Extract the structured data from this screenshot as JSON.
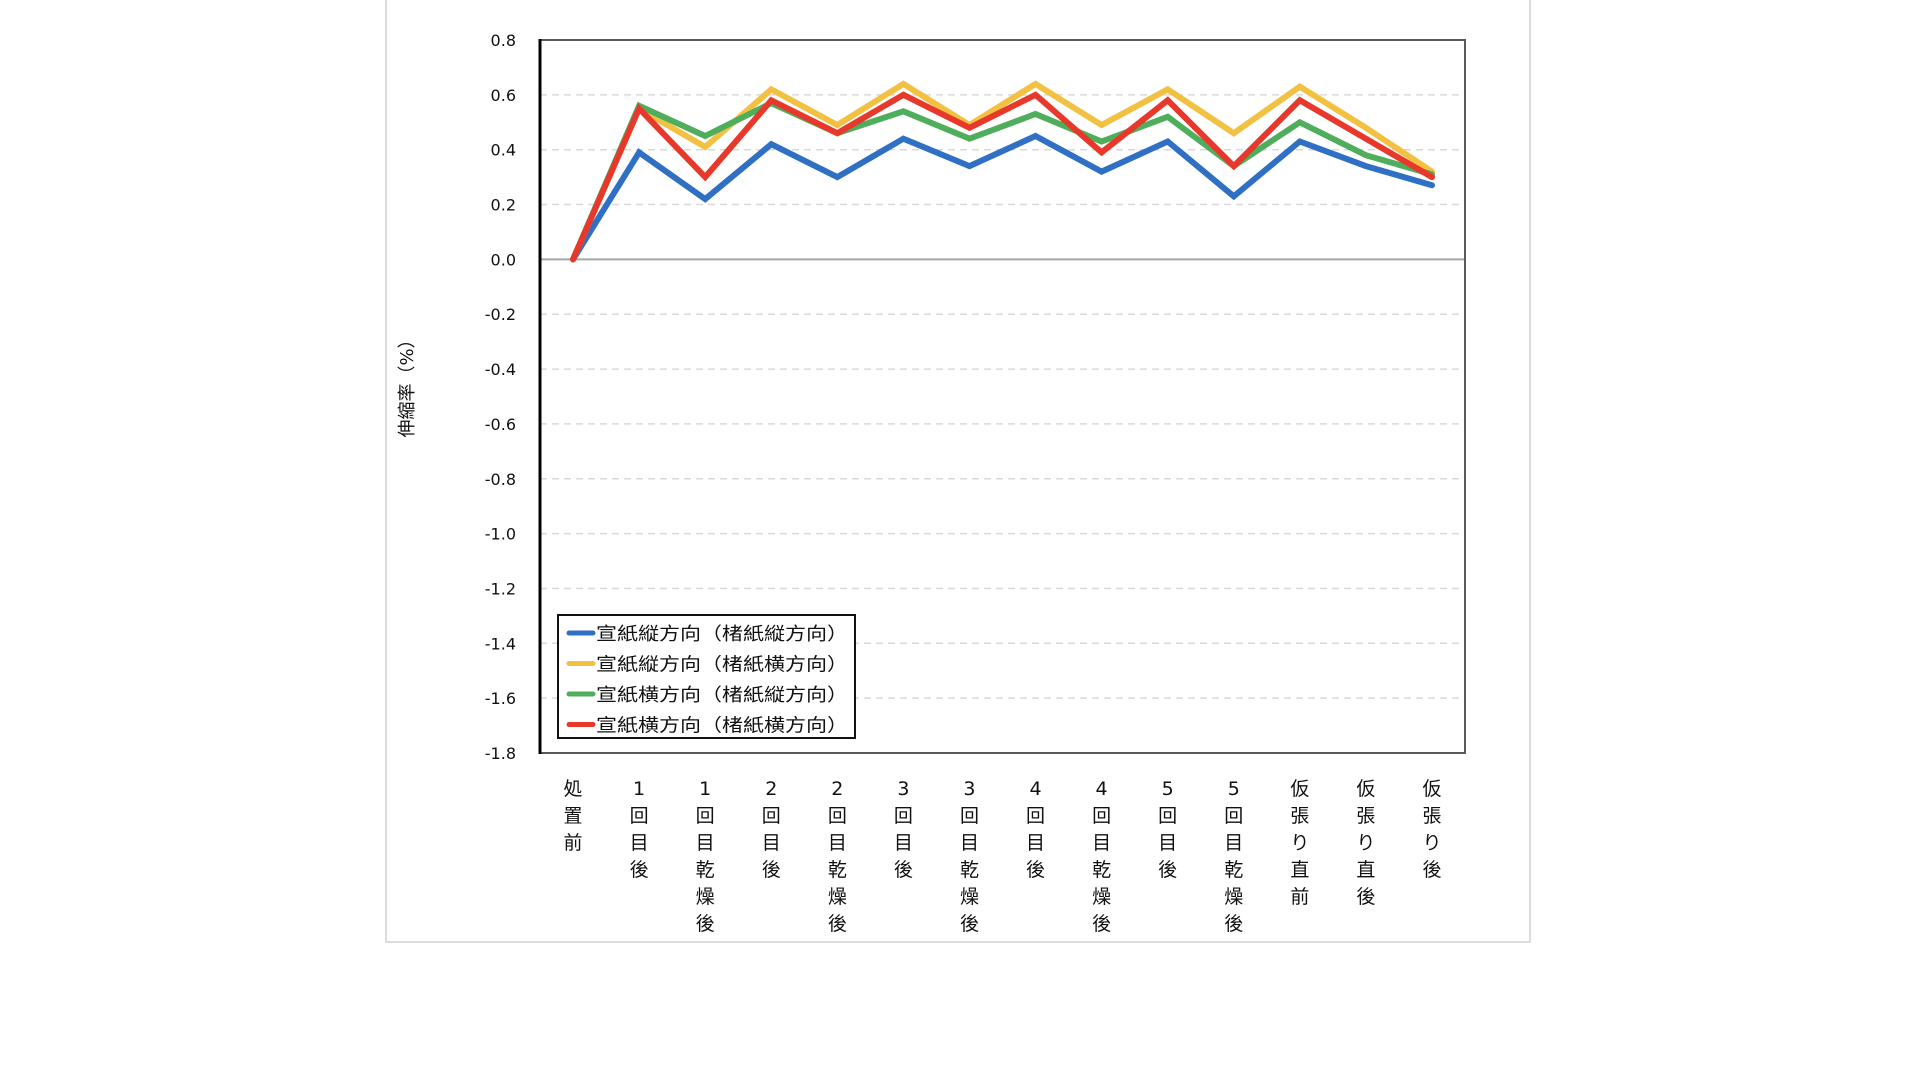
{
  "chart_data": {
    "type": "line",
    "title": "",
    "xlabel": "",
    "ylabel": "伸縮率（%）",
    "ylim": [
      -1.8,
      0.8
    ],
    "ytick_step": 0.2,
    "yticks": [
      "0.8",
      "0.6",
      "0.4",
      "0.2",
      "0.0",
      "-0.2",
      "-0.4",
      "-0.6",
      "-0.8",
      "-1.0",
      "-1.2",
      "-1.4",
      "-1.6",
      "-1.8"
    ],
    "grid": true,
    "legend_position": "bottom-left",
    "categories": [
      "処置前",
      "1回目後",
      "1回目乾燥後",
      "2回目後",
      "2回目乾燥後",
      "3回目後",
      "3回目乾燥後",
      "4回目後",
      "4回目乾燥後",
      "5回目後",
      "5回目乾燥後",
      "仮張り直前",
      "仮張り直後",
      "仮張り後"
    ],
    "series": [
      {
        "name": "宣紙縦方向（楮紙縦方向）",
        "color": "#2f6fc4",
        "values": [
          0.0,
          0.39,
          0.22,
          0.42,
          0.3,
          0.44,
          0.34,
          0.45,
          0.32,
          0.43,
          0.23,
          0.43,
          0.34,
          0.27
        ]
      },
      {
        "name": "宣紙縦方向（楮紙横方向）",
        "color": "#f2c142",
        "values": [
          0.0,
          0.55,
          0.41,
          0.62,
          0.49,
          0.64,
          0.49,
          0.64,
          0.49,
          0.62,
          0.46,
          0.63,
          0.48,
          0.32
        ]
      },
      {
        "name": "宣紙横方向（楮紙縦方向）",
        "color": "#4fae5b",
        "values": [
          0.0,
          0.56,
          0.45,
          0.57,
          0.46,
          0.54,
          0.44,
          0.53,
          0.43,
          0.52,
          0.34,
          0.5,
          0.38,
          0.31
        ]
      },
      {
        "name": "宣紙横方向（楮紙横方向）",
        "color": "#e8382b",
        "values": [
          0.0,
          0.55,
          0.3,
          0.58,
          0.46,
          0.6,
          0.48,
          0.6,
          0.39,
          0.58,
          0.34,
          0.58,
          0.44,
          0.3
        ]
      }
    ]
  }
}
